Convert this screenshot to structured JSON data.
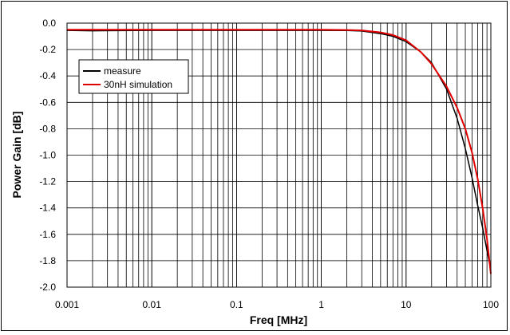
{
  "chart_data": {
    "type": "line",
    "title": "",
    "xlabel": "Freq [MHz]",
    "ylabel": "Power Gain [dB]",
    "x_scale": "log",
    "xlim": [
      0.001,
      100
    ],
    "ylim": [
      -2.0,
      0.0
    ],
    "x_ticks": [
      0.001,
      0.01,
      0.1,
      1,
      10,
      100
    ],
    "x_tick_labels": [
      "0.001",
      "0.01",
      "0.1",
      "1",
      "10",
      "100"
    ],
    "y_ticks": [
      0.0,
      -0.2,
      -0.4,
      -0.6,
      -0.8,
      -1.0,
      -1.2,
      -1.4,
      -1.6,
      -1.8,
      -2.0
    ],
    "y_tick_labels": [
      "0.0",
      "-0.2",
      "-0.4",
      "-0.6",
      "-0.8",
      "-1.0",
      "-1.2",
      "-1.4",
      "-1.6",
      "-1.8",
      "-2.0"
    ],
    "grid": true,
    "legend_position": "top-left",
    "series": [
      {
        "name": "measure",
        "color": "#000000",
        "x": [
          0.001,
          0.002,
          0.01,
          0.1,
          1,
          2,
          3,
          5,
          7,
          10,
          15,
          20,
          30,
          40,
          50,
          60,
          70,
          80,
          90,
          100
        ],
        "y": [
          -0.055,
          -0.058,
          -0.055,
          -0.055,
          -0.055,
          -0.056,
          -0.06,
          -0.08,
          -0.1,
          -0.14,
          -0.22,
          -0.3,
          -0.5,
          -0.72,
          -0.95,
          -1.17,
          -1.38,
          -1.55,
          -1.72,
          -1.87
        ]
      },
      {
        "name": "30nH simulation",
        "color": "#e00000",
        "x": [
          0.001,
          0.01,
          0.1,
          1,
          2,
          3,
          5,
          7,
          10,
          15,
          20,
          30,
          40,
          50,
          60,
          70,
          80,
          90,
          100
        ],
        "y": [
          -0.05,
          -0.05,
          -0.05,
          -0.05,
          -0.052,
          -0.055,
          -0.07,
          -0.09,
          -0.13,
          -0.22,
          -0.31,
          -0.48,
          -0.64,
          -0.8,
          -0.98,
          -1.18,
          -1.4,
          -1.63,
          -1.9
        ]
      }
    ]
  }
}
